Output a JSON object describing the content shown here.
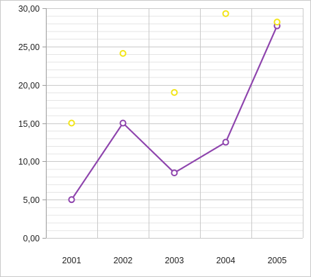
{
  "chart_data": {
    "type": "line",
    "categories": [
      "2001",
      "2002",
      "2003",
      "2004",
      "2005"
    ],
    "series": [
      {
        "style": "line-with-markers",
        "color": "#8e44ad",
        "values": [
          5.0,
          15.0,
          8.5,
          12.5,
          27.7
        ]
      },
      {
        "style": "markers-only",
        "color": "#f2e51a",
        "values": [
          15.0,
          24.1,
          19.0,
          29.3,
          28.2
        ]
      }
    ],
    "ylim": [
      0,
      30
    ],
    "y_ticks": [
      "0,00",
      "5,00",
      "10,00",
      "15,00",
      "20,00",
      "25,00",
      "30,00"
    ],
    "y_tick_values": [
      0,
      5,
      10,
      15,
      20,
      25,
      30
    ],
    "y_minor_step": 1,
    "grid": true,
    "legend": "none",
    "title": "",
    "xlabel": "",
    "ylabel": ""
  }
}
